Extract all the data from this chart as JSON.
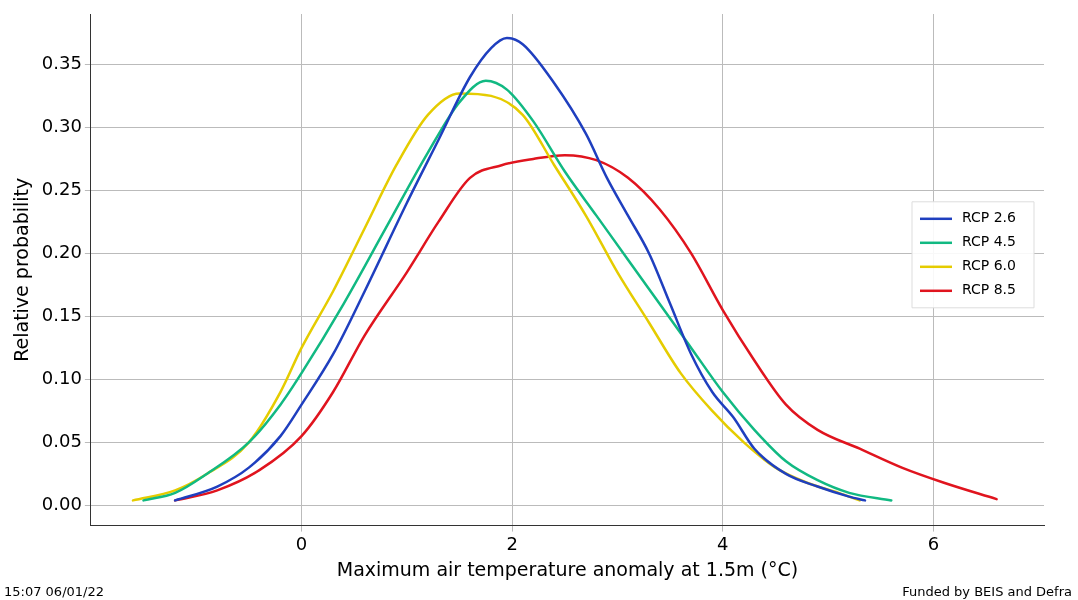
{
  "chart_data": {
    "type": "line",
    "xlabel": "Maximum air temperature anomaly at 1.5m (°C)",
    "ylabel": "Relative probability",
    "xlim": [
      -2.0,
      7.05
    ],
    "ylim": [
      -0.016,
      0.39
    ],
    "xticks": [
      0,
      2,
      4,
      6
    ],
    "yticks": [
      {
        "value": 0,
        "label": "0.00"
      },
      {
        "value": 0.05,
        "label": "0.05"
      },
      {
        "value": 0.1,
        "label": "0.10"
      },
      {
        "value": 0.15,
        "label": "0.15"
      },
      {
        "value": 0.2,
        "label": "0.20"
      },
      {
        "value": 0.25,
        "label": "0.25"
      },
      {
        "value": 0.3,
        "label": "0.30"
      },
      {
        "value": 0.35,
        "label": "0.35"
      }
    ],
    "grid": true,
    "legend": "right",
    "marker": "none",
    "line_style": "solid",
    "annotations": [
      "15:07 06/01/22",
      "Funded by BEIS and Defra"
    ],
    "series": [
      {
        "name": "RCP 2.6",
        "color": "#1f3fbf",
        "x": [
          -1.2,
          -0.8,
          -0.5,
          -0.2,
          0,
          0.3,
          0.6,
          1.0,
          1.3,
          1.6,
          1.8,
          1.95,
          2.1,
          2.4,
          2.7,
          2.9,
          3.1,
          3.3,
          3.5,
          3.7,
          3.9,
          4.1,
          4.3,
          4.6,
          4.9,
          5.2,
          5.35
        ],
        "values": [
          0.004,
          0.015,
          0.03,
          0.055,
          0.08,
          0.12,
          0.17,
          0.24,
          0.29,
          0.34,
          0.363,
          0.371,
          0.366,
          0.335,
          0.295,
          0.26,
          0.23,
          0.2,
          0.16,
          0.12,
          0.09,
          0.07,
          0.045,
          0.025,
          0.015,
          0.007,
          0.004
        ]
      },
      {
        "name": "RCP 4.5",
        "color": "#11b982",
        "x": [
          -1.5,
          -1.2,
          -0.9,
          -0.5,
          -0.2,
          0,
          0.4,
          0.8,
          1.2,
          1.5,
          1.75,
          1.95,
          2.2,
          2.5,
          2.8,
          3.1,
          3.4,
          3.7,
          4.0,
          4.3,
          4.6,
          4.9,
          5.2,
          5.6
        ],
        "values": [
          0.004,
          0.01,
          0.025,
          0.05,
          0.08,
          0.105,
          0.16,
          0.22,
          0.28,
          0.32,
          0.337,
          0.33,
          0.305,
          0.265,
          0.23,
          0.195,
          0.16,
          0.125,
          0.09,
          0.06,
          0.035,
          0.02,
          0.01,
          0.004
        ]
      },
      {
        "name": "RCP 6.0",
        "color": "#e5cc00",
        "x": [
          -1.6,
          -1.2,
          -0.9,
          -0.5,
          -0.2,
          0,
          0.3,
          0.6,
          0.9,
          1.2,
          1.5,
          1.8,
          2.1,
          2.4,
          2.7,
          3.0,
          3.3,
          3.6,
          3.9,
          4.2,
          4.5,
          4.8,
          5.1,
          5.3
        ],
        "values": [
          0.004,
          0.012,
          0.025,
          0.05,
          0.09,
          0.125,
          0.17,
          0.22,
          0.27,
          0.31,
          0.327,
          0.325,
          0.31,
          0.27,
          0.23,
          0.185,
          0.145,
          0.105,
          0.075,
          0.05,
          0.03,
          0.018,
          0.01,
          0.004
        ]
      },
      {
        "name": "RCP 8.5",
        "color": "#e0141e",
        "x": [
          -1.2,
          -0.8,
          -0.4,
          0,
          0.3,
          0.6,
          1.0,
          1.3,
          1.6,
          1.9,
          2.2,
          2.5,
          2.8,
          3.1,
          3.4,
          3.7,
          4.0,
          4.3,
          4.6,
          4.9,
          5.3,
          5.7,
          6.1,
          6.6
        ],
        "values": [
          0.004,
          0.012,
          0.028,
          0.055,
          0.09,
          0.135,
          0.185,
          0.225,
          0.26,
          0.27,
          0.275,
          0.278,
          0.274,
          0.26,
          0.235,
          0.2,
          0.155,
          0.115,
          0.08,
          0.06,
          0.045,
          0.03,
          0.018,
          0.005
        ]
      }
    ]
  }
}
